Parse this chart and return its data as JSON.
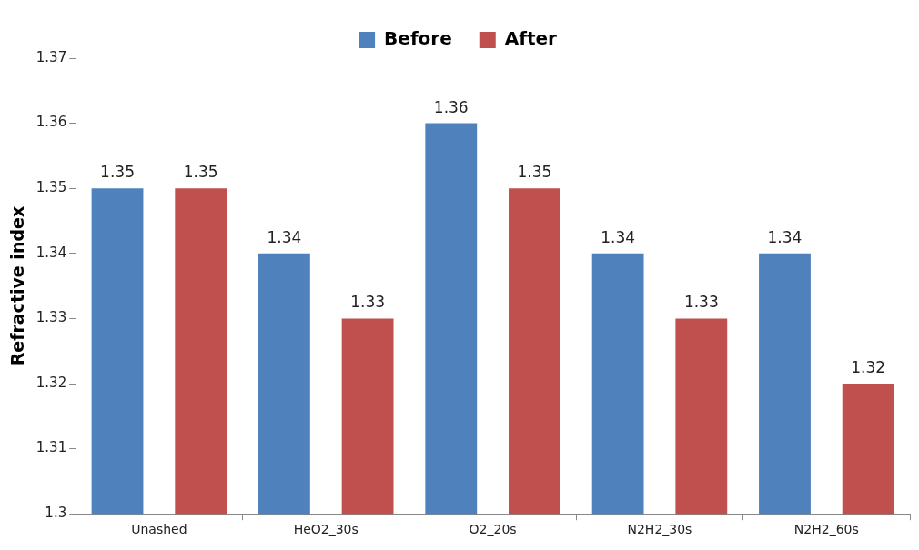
{
  "chart_data": {
    "type": "bar",
    "ylabel": "Refractive index",
    "categories": [
      "Unashed",
      "HeO2_30s",
      "O2_20s",
      "N2H2_30s",
      "N2H2_60s"
    ],
    "series": [
      {
        "name": "Before",
        "color": "#4f81bd",
        "values": [
          1.35,
          1.34,
          1.36,
          1.34,
          1.34
        ]
      },
      {
        "name": "After",
        "color": "#c0504d",
        "values": [
          1.35,
          1.33,
          1.35,
          1.33,
          1.32
        ]
      }
    ],
    "ylim": [
      1.3,
      1.37
    ],
    "yticks": [
      1.3,
      1.31,
      1.32,
      1.33,
      1.34,
      1.35,
      1.36,
      1.37
    ],
    "grid": false,
    "legend": "top",
    "data_labels": true
  }
}
